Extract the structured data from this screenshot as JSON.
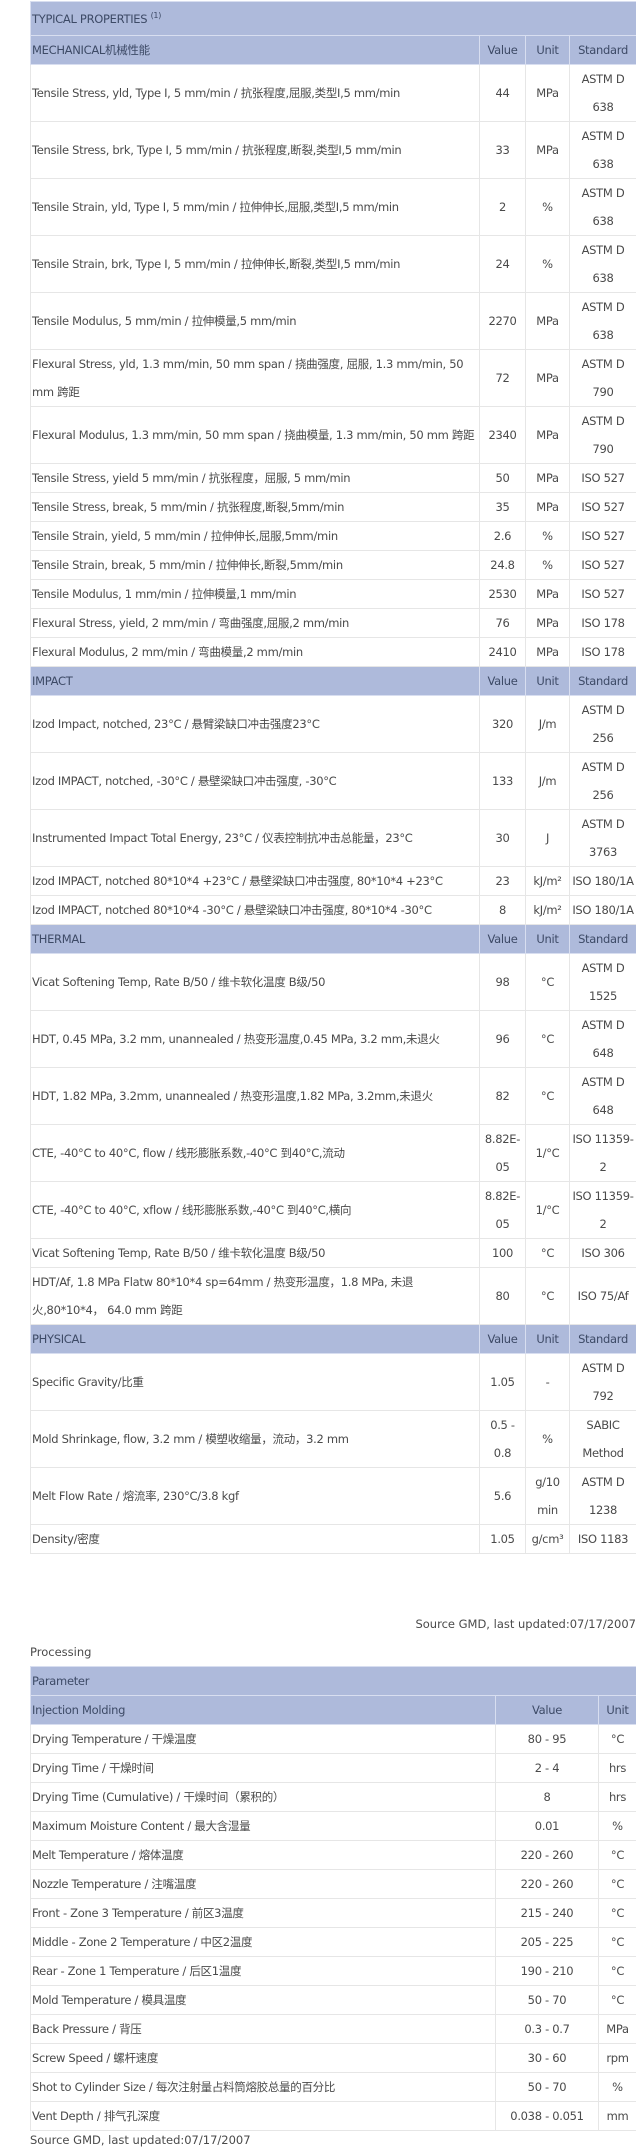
{
  "typical": {
    "title": "TYPICAL PROPERTIES",
    "title_sup": "(1)",
    "col_value": "Value",
    "col_unit": "Unit",
    "col_standard": "Standard",
    "sections": [
      {
        "name": "MECHANICAL机械性能",
        "rows": [
          [
            "Tensile Stress, yld, Type I, 5 mm/min / 抗张程度,屈服,类型I,5 mm/min",
            "44",
            "MPa",
            "ASTM D 638"
          ],
          [
            "Tensile Stress, brk, Type I, 5 mm/min / 抗张程度,断裂,类型I,5 mm/min",
            "33",
            "MPa",
            "ASTM D 638"
          ],
          [
            "Tensile Strain, yld, Type I, 5 mm/min / 拉伸伸长,屈服,类型I,5 mm/min",
            "2",
            "%",
            "ASTM D 638"
          ],
          [
            "Tensile Strain, brk, Type I, 5 mm/min / 拉伸伸长,断裂,类型I,5 mm/min",
            "24",
            "%",
            "ASTM D 638"
          ],
          [
            "Tensile Modulus, 5 mm/min / 拉伸模量,5 mm/min",
            "2270",
            "MPa",
            "ASTM D 638"
          ],
          [
            "Flexural Stress, yld, 1.3 mm/min, 50 mm span / 挠曲强度, 屈服, 1.3 mm/min, 50 mm 跨距",
            "72",
            "MPa",
            "ASTM D 790"
          ],
          [
            "Flexural Modulus, 1.3 mm/min, 50 mm span / 挠曲模量, 1.3 mm/min, 50 mm 跨距",
            "2340",
            "MPa",
            "ASTM D 790"
          ],
          [
            "Tensile Stress, yield 5 mm/min / 抗张程度，屈服, 5 mm/min",
            "50",
            "MPa",
            "ISO 527"
          ],
          [
            "Tensile Stress, break, 5 mm/min / 抗张程度,断裂,5mm/min",
            "35",
            "MPa",
            "ISO 527"
          ],
          [
            "Tensile Strain, yield, 5 mm/min / 拉伸伸长,屈服,5mm/min",
            "2.6",
            "%",
            "ISO 527"
          ],
          [
            "Tensile Strain, break, 5 mm/min / 拉伸伸长,断裂,5mm/min",
            "24.8",
            "%",
            "ISO 527"
          ],
          [
            "Tensile Modulus, 1 mm/min / 拉伸模量,1 mm/min",
            "2530",
            "MPa",
            "ISO 527"
          ],
          [
            "Flexural Stress, yield, 2 mm/min / 弯曲强度,屈服,2 mm/min",
            "76",
            "MPa",
            "ISO 178"
          ],
          [
            "Flexural Modulus, 2 mm/min / 弯曲模量,2 mm/min",
            "2410",
            "MPa",
            "ISO 178"
          ]
        ]
      },
      {
        "name": "IMPACT",
        "rows": [
          [
            "Izod Impact, notched, 23°C / 悬臂梁缺口冲击强度23°C",
            "320",
            "J/m",
            "ASTM D 256"
          ],
          [
            "Izod IMPACT, notched, -30°C / 悬壁梁缺口冲击强度, -30°C",
            "133",
            "J/m",
            "ASTM D 256"
          ],
          [
            "Instrumented Impact Total Energy, 23°C / 仪表控制抗冲击总能量，23°C",
            "30",
            "J",
            "ASTM D 3763"
          ],
          [
            "Izod IMPACT, notched 80*10*4 +23°C / 悬壁梁缺口冲击强度, 80*10*4 +23°C",
            "23",
            "kJ/m²",
            "ISO 180/1A"
          ],
          [
            "Izod IMPACT, notched 80*10*4 -30°C / 悬壁梁缺口冲击强度, 80*10*4 -30°C",
            "8",
            "kJ/m²",
            "ISO 180/1A"
          ]
        ]
      },
      {
        "name": "THERMAL",
        "rows": [
          [
            "Vicat Softening Temp, Rate B/50 / 维卡软化温度 B级/50",
            "98",
            "°C",
            "ASTM D 1525"
          ],
          [
            "HDT, 0.45 MPa, 3.2 mm, unannealed / 热变形温度,0.45 MPa, 3.2 mm,未退火",
            "96",
            "°C",
            "ASTM D 648"
          ],
          [
            "HDT, 1.82 MPa, 3.2mm, unannealed / 热变形温度,1.82 MPa, 3.2mm,未退火",
            "82",
            "°C",
            "ASTM D 648"
          ],
          [
            "CTE, -40°C to 40°C, flow / 线形膨胀系数,-40°C 到40°C,流动",
            "8.82E-05",
            "1/°C",
            "ISO 11359-2"
          ],
          [
            "CTE, -40°C to 40°C, xflow / 线形膨胀系数,-40°C 到40°C,横向",
            "8.82E-05",
            "1/°C",
            "ISO 11359-2"
          ],
          [
            "Vicat Softening Temp, Rate B/50 / 维卡软化温度 B级/50",
            "100",
            "°C",
            "ISO 306"
          ],
          [
            "HDT/Af, 1.8 MPa Flatw 80*10*4 sp=64mm / 热变形温度，1.8 MPa, 未退火,80*10*4， 64.0 mm 跨距",
            "80",
            "°C",
            "ISO 75/Af"
          ]
        ]
      },
      {
        "name": "PHYSICAL",
        "rows": [
          [
            "Specific Gravity/比重",
            "1.05",
            "-",
            "ASTM D 792"
          ],
          [
            "Mold Shrinkage, flow, 3.2 mm / 模塑收缩量，流动，3.2 mm",
            "0.5 - 0.8",
            "%",
            "SABIC Method"
          ],
          [
            "Melt Flow Rate / 熔流率, 230°C/3.8 kgf",
            "5.6",
            "g/10 min",
            "ASTM D 1238"
          ],
          [
            "Density/密度",
            "1.05",
            "g/cm³",
            "ISO 1183"
          ]
        ]
      }
    ],
    "source": "Source GMD, last updated:07/17/2007"
  },
  "processing": {
    "label": "Processing",
    "parameter_header": "Parameter",
    "section": "Injection Molding",
    "col_value": "Value",
    "col_unit": "Unit",
    "rows": [
      [
        "Drying Temperature / 干燥温度",
        "80 - 95",
        "°C"
      ],
      [
        "Drying Time / 干燥时间",
        "2 - 4",
        "hrs"
      ],
      [
        "Drying Time (Cumulative) / 干燥时间（累积的）",
        "8",
        "hrs"
      ],
      [
        "Maximum Moisture Content / 最大含湿量",
        "0.01",
        "%"
      ],
      [
        "Melt Temperature / 熔体温度",
        "220 - 260",
        "°C"
      ],
      [
        "Nozzle Temperature / 注嘴温度",
        "220 - 260",
        "°C"
      ],
      [
        "Front - Zone 3 Temperature / 前区3温度",
        "215 - 240",
        "°C"
      ],
      [
        "Middle - Zone 2 Temperature / 中区2温度",
        "205 - 225",
        "°C"
      ],
      [
        "Rear - Zone 1 Temperature / 后区1温度",
        "190 - 210",
        "°C"
      ],
      [
        "Mold Temperature / 模具温度",
        "50 - 70",
        "°C"
      ],
      [
        "Back Pressure / 背压",
        "0.3 - 0.7",
        "MPa"
      ],
      [
        "Screw Speed / 螺杆速度",
        "30 - 60",
        "rpm"
      ],
      [
        "Shot to Cylinder Size / 每次注射量占料筒熔胶总量的百分比",
        "50 - 70",
        "%"
      ],
      [
        "Vent Depth / 排气孔深度",
        "0.038 - 0.051",
        "mm"
      ]
    ],
    "source": "Source GMD, last updated:07/17/2007"
  },
  "colors": {
    "header_bg": "#aebadb",
    "border": "#333333"
  }
}
